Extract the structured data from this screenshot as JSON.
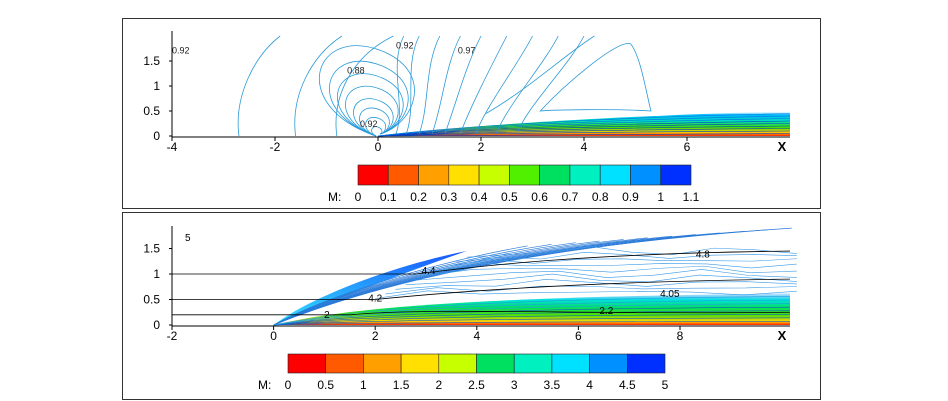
{
  "chart_data": [
    {
      "type": "contour",
      "x_axis_label": "X",
      "x_ticks": [
        -4,
        -2,
        0,
        2,
        4,
        6
      ],
      "y_ticks": [
        0,
        0.5,
        1,
        1.5
      ],
      "xlim": [
        -4,
        8.0
      ],
      "ylim": [
        0,
        2.0
      ],
      "contour_labels": [
        {
          "text": "0.92",
          "x": -4.0,
          "y": 1.65
        },
        {
          "text": "0.88",
          "x": -0.6,
          "y": 1.25
        },
        {
          "text": "0.92",
          "x": 0.35,
          "y": 1.75
        },
        {
          "text": "0.97",
          "x": 1.55,
          "y": 1.65
        },
        {
          "text": "0.92",
          "x": -0.35,
          "y": 0.18
        }
      ],
      "colorbar": {
        "label": "M:",
        "ticks": [
          "0",
          "0.1",
          "0.2",
          "0.3",
          "0.4",
          "0.5",
          "0.6",
          "0.7",
          "0.8",
          "0.9",
          "1",
          "1.1"
        ],
        "min": 0,
        "max": 1.1
      }
    },
    {
      "type": "contour",
      "x_axis_label": "X",
      "x_ticks": [
        -2,
        0,
        2,
        4,
        6,
        8
      ],
      "y_ticks": [
        0,
        0.5,
        1,
        1.5
      ],
      "xlim": [
        -2,
        10.5
      ],
      "ylim": [
        0,
        1.9
      ],
      "inset_label": "5",
      "contour_labels": [
        {
          "text": "4.4",
          "x": 3.05,
          "y": 1.0
        },
        {
          "text": "4.8",
          "x": 8.45,
          "y": 1.32
        },
        {
          "text": "4.2",
          "x": 2.0,
          "y": 0.46
        },
        {
          "text": "4.05",
          "x": 7.8,
          "y": 0.55
        },
        {
          "text": "2",
          "x": 1.05,
          "y": 0.14
        },
        {
          "text": "2.2",
          "x": 6.55,
          "y": 0.22
        }
      ],
      "streamlines_y": [
        0.2,
        0.5,
        1.0
      ],
      "colorbar": {
        "label": "M:",
        "ticks": [
          "0",
          "0.5",
          "1",
          "1.5",
          "2",
          "2.5",
          "3",
          "3.5",
          "4",
          "4.5",
          "5"
        ],
        "min": 0,
        "max": 5
      }
    }
  ]
}
